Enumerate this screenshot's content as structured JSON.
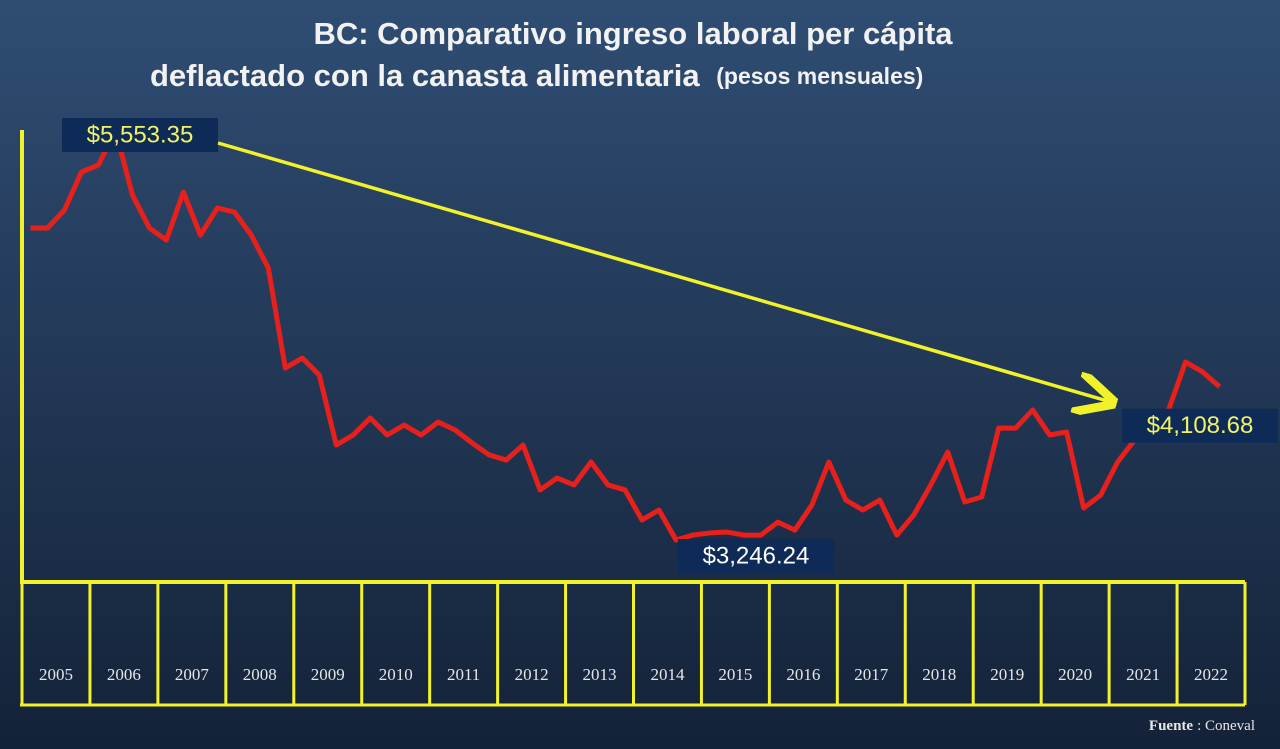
{
  "chart_data": {
    "type": "line",
    "title": [
      "BC: Comparativo ingreso laboral per cápita",
      "deflactado con la canasta alimentaria"
    ],
    "subtitle": "(pesos mensuales)",
    "source": {
      "label": "Fuente",
      "text": ": Coneval"
    },
    "years": [
      "2005",
      "2006",
      "2007",
      "2008",
      "2009",
      "2010",
      "2011",
      "2012",
      "2013",
      "2014",
      "2015",
      "2016",
      "2017",
      "2018",
      "2019",
      "2020",
      "2021",
      "2022"
    ],
    "xlim": [
      2005,
      2023
    ],
    "x": [
      2005,
      2005.25,
      2005.5,
      2005.75,
      2006,
      2006.25,
      2006.5,
      2006.75,
      2007,
      2007.25,
      2007.5,
      2007.75,
      2008,
      2008.25,
      2008.5,
      2008.75,
      2009,
      2009.25,
      2009.5,
      2009.75,
      2010,
      2010.25,
      2010.5,
      2010.75,
      2011,
      2011.25,
      2011.5,
      2011.75,
      2012,
      2012.25,
      2012.5,
      2012.75,
      2013,
      2013.25,
      2013.5,
      2013.75,
      2014,
      2014.25,
      2014.5,
      2014.75,
      2015,
      2015.25,
      2015.5,
      2015.75,
      2016,
      2016.25,
      2016.5,
      2016.75,
      2017,
      2017.25,
      2017.5,
      2017.75,
      2018,
      2018.25,
      2018.5,
      2018.75,
      2019,
      2019.25,
      2019.5,
      2019.75,
      2020,
      2020.25,
      2020.5,
      2020.75,
      2021,
      2021.25,
      2021.5,
      2021.75,
      2022,
      2022.25,
      2022.5
    ],
    "series": [
      {
        "color": "#e8201c",
        "values": [
          5002,
          5002,
          5103,
          5317,
          5356,
          5553.35,
          5188,
          5002,
          4934,
          5204,
          4962,
          5114,
          5092,
          4962,
          4777,
          4214,
          4270,
          4175,
          3781,
          3837,
          3933,
          3837,
          3893,
          3837,
          3910,
          3865,
          3792,
          3725,
          3696,
          3781,
          3528,
          3595,
          3556,
          3685,
          3556,
          3528,
          3359,
          3415,
          3246.24,
          3274,
          3286,
          3291,
          3274,
          3274,
          3347,
          3302,
          3443,
          3685,
          3471,
          3415,
          3471,
          3274,
          3387,
          3556,
          3741,
          3460,
          3488,
          3876,
          3876,
          3978,
          3837,
          3854,
          3426,
          3499,
          3685,
          3809,
          3866,
          3978,
          4248,
          4192,
          4108.68
        ],
        "value_labels": [
          null,
          null,
          null,
          null,
          null,
          "$5,553.35",
          null,
          null,
          null,
          null,
          null,
          null,
          null,
          null,
          null,
          null,
          null,
          null,
          null,
          null,
          null,
          null,
          null,
          null,
          null,
          null,
          null,
          null,
          null,
          null,
          null,
          null,
          null,
          null,
          null,
          null,
          null,
          null,
          "$3,246.24",
          null,
          null,
          null,
          null,
          null,
          null,
          null,
          null,
          null,
          null,
          null,
          null,
          null,
          null,
          null,
          null,
          null,
          null,
          null,
          null,
          null,
          null,
          null,
          null,
          null,
          null,
          null,
          null,
          null,
          null,
          null,
          "$4,108.68"
        ]
      }
    ]
  }
}
